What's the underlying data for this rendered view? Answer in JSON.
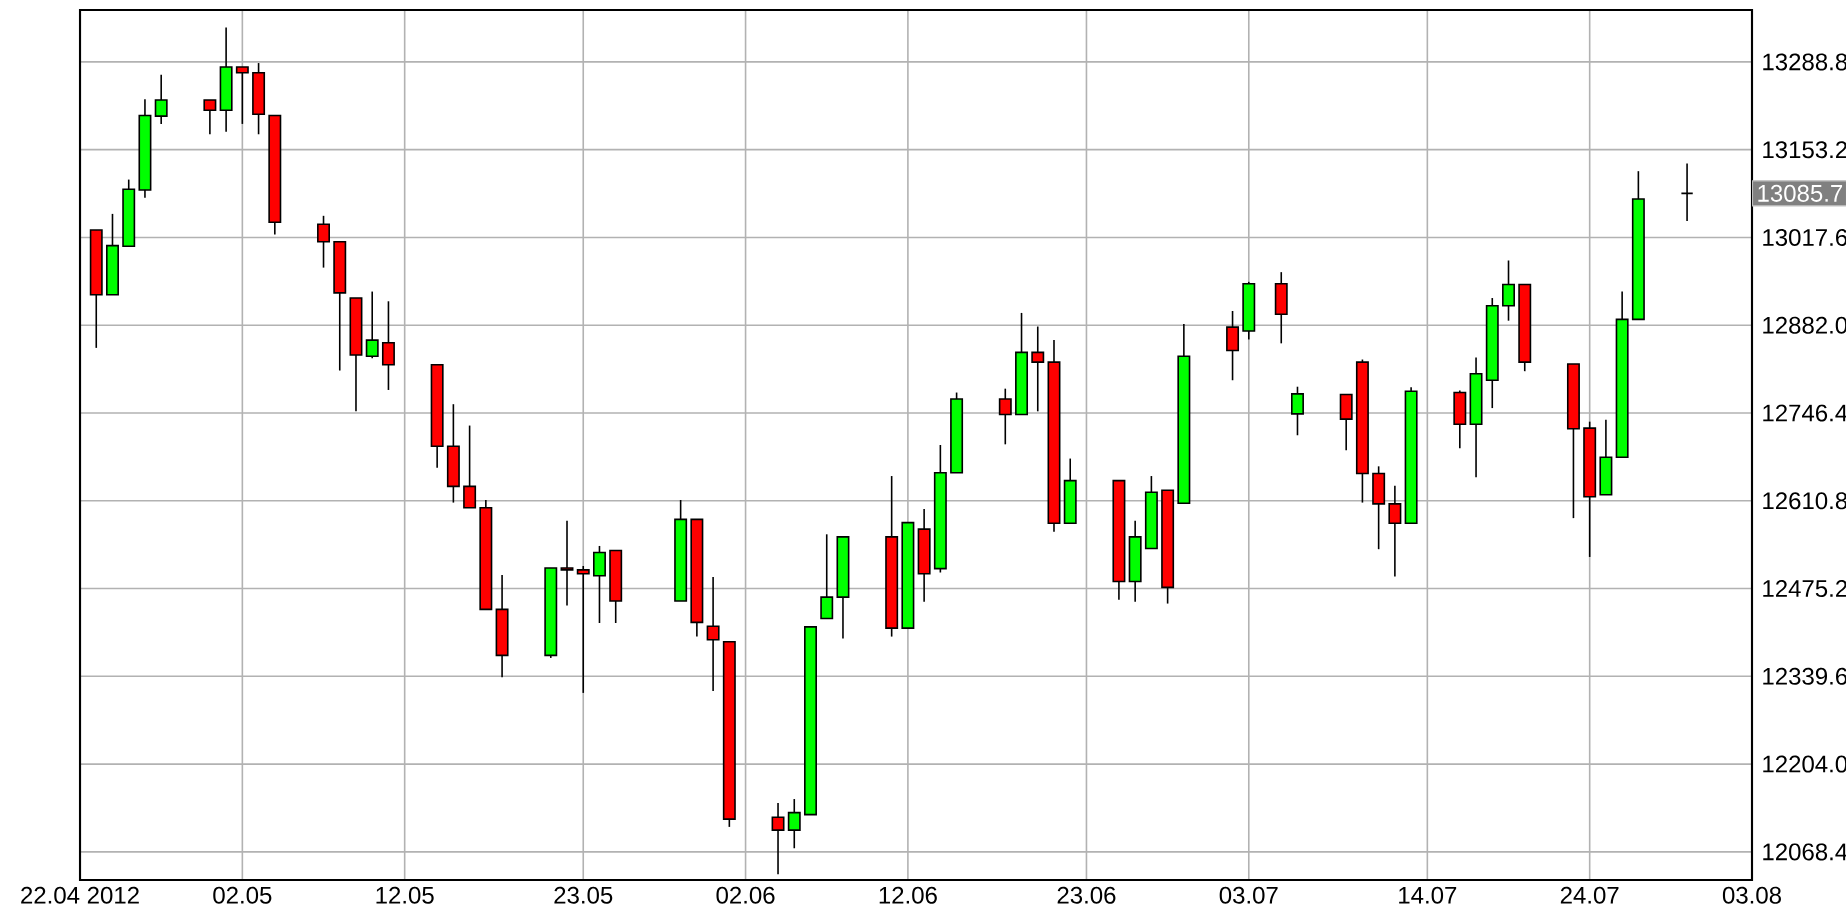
{
  "chart_data": {
    "type": "candlestick",
    "x": [
      "2012-04-23",
      "2012-04-24",
      "2012-04-25",
      "2012-04-26",
      "2012-04-27",
      "2012-04-30",
      "2012-05-01",
      "2012-05-02",
      "2012-05-03",
      "2012-05-04",
      "2012-05-07",
      "2012-05-08",
      "2012-05-09",
      "2012-05-10",
      "2012-05-11",
      "2012-05-14",
      "2012-05-15",
      "2012-05-16",
      "2012-05-17",
      "2012-05-18",
      "2012-05-21",
      "2012-05-22",
      "2012-05-23",
      "2012-05-24",
      "2012-05-25",
      "2012-05-29",
      "2012-05-30",
      "2012-05-31",
      "2012-06-01",
      "2012-06-04",
      "2012-06-05",
      "2012-06-06",
      "2012-06-07",
      "2012-06-08",
      "2012-06-11",
      "2012-06-12",
      "2012-06-13",
      "2012-06-14",
      "2012-06-15",
      "2012-06-18",
      "2012-06-19",
      "2012-06-20",
      "2012-06-21",
      "2012-06-22",
      "2012-06-25",
      "2012-06-26",
      "2012-06-27",
      "2012-06-28",
      "2012-06-29",
      "2012-07-02",
      "2012-07-03",
      "2012-07-05",
      "2012-07-06",
      "2012-07-09",
      "2012-07-10",
      "2012-07-11",
      "2012-07-12",
      "2012-07-13",
      "2012-07-16",
      "2012-07-17",
      "2012-07-18",
      "2012-07-19",
      "2012-07-20",
      "2012-07-23",
      "2012-07-24",
      "2012-07-25",
      "2012-07-26",
      "2012-07-27",
      "2012-07-30"
    ],
    "ohlc": [
      [
        13029,
        13029,
        12847,
        12929
      ],
      [
        12929,
        13054,
        12929,
        13005
      ],
      [
        13004,
        13107,
        13004,
        13092
      ],
      [
        13091,
        13231,
        13079,
        13206
      ],
      [
        13205,
        13269,
        13193,
        13230
      ],
      [
        13230,
        13230,
        13177,
        13214
      ],
      [
        13214,
        13342,
        13181,
        13281
      ],
      [
        13281,
        13281,
        13193,
        13272
      ],
      [
        13272,
        13287,
        13177,
        13208
      ],
      [
        13206,
        13206,
        13022,
        13041
      ],
      [
        13038,
        13051,
        12971,
        13011
      ],
      [
        13011,
        13011,
        12812,
        12932
      ],
      [
        12924,
        12924,
        12749,
        12836
      ],
      [
        12834,
        12934,
        12831,
        12859
      ],
      [
        12855,
        12919,
        12782,
        12821
      ],
      [
        12821,
        12821,
        12662,
        12695
      ],
      [
        12695,
        12760,
        12608,
        12633
      ],
      [
        12633,
        12727,
        12600,
        12600
      ],
      [
        12600,
        12612,
        12443,
        12443
      ],
      [
        12443,
        12496,
        12338,
        12372
      ],
      [
        12372,
        12507,
        12368,
        12507
      ],
      [
        12507,
        12580,
        12449,
        12504
      ],
      [
        12504,
        12510,
        12314,
        12498
      ],
      [
        12495,
        12541,
        12422,
        12531
      ],
      [
        12534,
        12534,
        12422,
        12456
      ],
      [
        12456,
        12612,
        12456,
        12582
      ],
      [
        12582,
        12582,
        12401,
        12423
      ],
      [
        12417,
        12493,
        12317,
        12396
      ],
      [
        12393,
        12393,
        12107,
        12119
      ],
      [
        12122,
        12144,
        12034,
        12102
      ],
      [
        12102,
        12150,
        12074,
        12129
      ],
      [
        12126,
        12416,
        12126,
        12416
      ],
      [
        12429,
        12559,
        12429,
        12462
      ],
      [
        12462,
        12555,
        12398,
        12555
      ],
      [
        12555,
        12649,
        12401,
        12414
      ],
      [
        12414,
        12577,
        12414,
        12577
      ],
      [
        12567,
        12598,
        12455,
        12498
      ],
      [
        12506,
        12697,
        12500,
        12654
      ],
      [
        12654,
        12778,
        12654,
        12768
      ],
      [
        12768,
        12784,
        12698,
        12744
      ],
      [
        12744,
        12901,
        12744,
        12840
      ],
      [
        12840,
        12880,
        12749,
        12825
      ],
      [
        12825,
        12859,
        12563,
        12576
      ],
      [
        12576,
        12676,
        12576,
        12642
      ],
      [
        12642,
        12642,
        12458,
        12486
      ],
      [
        12486,
        12580,
        12455,
        12555
      ],
      [
        12537,
        12649,
        12537,
        12624
      ],
      [
        12627,
        12627,
        12452,
        12477
      ],
      [
        12607,
        12884,
        12607,
        12834
      ],
      [
        12879,
        12904,
        12797,
        12843
      ],
      [
        12873,
        12949,
        12860,
        12946
      ],
      [
        12946,
        12964,
        12854,
        12899
      ],
      [
        12745,
        12787,
        12712,
        12776
      ],
      [
        12775,
        12775,
        12689,
        12737
      ],
      [
        12825,
        12829,
        12608,
        12653
      ],
      [
        12653,
        12664,
        12536,
        12606
      ],
      [
        12606,
        12634,
        12494,
        12576
      ],
      [
        12576,
        12786,
        12576,
        12780
      ],
      [
        12778,
        12781,
        12692,
        12729
      ],
      [
        12729,
        12832,
        12647,
        12807
      ],
      [
        12797,
        12924,
        12754,
        12912
      ],
      [
        12912,
        12982,
        12889,
        12945
      ],
      [
        12945,
        12945,
        12811,
        12825
      ],
      [
        12822,
        12822,
        12584,
        12722
      ],
      [
        12723,
        12733,
        12524,
        12617
      ],
      [
        12620,
        12736,
        12620,
        12678
      ],
      [
        12678,
        12934,
        12678,
        12891
      ],
      [
        12891,
        13120,
        12891,
        13077
      ],
      [
        13085.7,
        13132,
        13043,
        13085.7
      ]
    ],
    "colors": [
      "#ff0000",
      "#00ff00",
      "#00ff00",
      "#00ff00",
      "#00ff00",
      "#ff0000",
      "#00ff00",
      "#ff0000",
      "#ff0000",
      "#ff0000",
      "#ff0000",
      "#ff0000",
      "#ff0000",
      "#00ff00",
      "#ff0000",
      "#ff0000",
      "#ff0000",
      "#ff0000",
      "#ff0000",
      "#ff0000",
      "#00ff00",
      "#ff0000",
      "#ff0000",
      "#00ff00",
      "#ff0000",
      "#00ff00",
      "#ff0000",
      "#ff0000",
      "#ff0000",
      "#ff0000",
      "#00ff00",
      "#00ff00",
      "#00ff00",
      "#00ff00",
      "#ff0000",
      "#00ff00",
      "#ff0000",
      "#00ff00",
      "#00ff00",
      "#ff0000",
      "#00ff00",
      "#ff0000",
      "#ff0000",
      "#00ff00",
      "#ff0000",
      "#00ff00",
      "#00ff00",
      "#ff0000",
      "#00ff00",
      "#ff0000",
      "#00ff00",
      "#ff0000",
      "#00ff00",
      "#ff0000",
      "#ff0000",
      "#ff0000",
      "#ff0000",
      "#00ff00",
      "#ff0000",
      "#00ff00",
      "#00ff00",
      "#00ff00",
      "#ff0000",
      "#ff0000",
      "#ff0000",
      "#00ff00",
      "#00ff00",
      "#00ff00",
      "#000000"
    ],
    "xlim": [
      "2012-04-22",
      "2012-08-03"
    ],
    "xticks": [
      {
        "value": "2012-04-22",
        "label": "22.04 2012"
      },
      {
        "value": "2012-05-02",
        "label": "02.05"
      },
      {
        "value": "2012-05-12",
        "label": "12.05"
      },
      {
        "value": "2012-05-23",
        "label": "23.05"
      },
      {
        "value": "2012-06-02",
        "label": "02.06"
      },
      {
        "value": "2012-06-12",
        "label": "12.06"
      },
      {
        "value": "2012-06-23",
        "label": "23.06"
      },
      {
        "value": "2012-07-03",
        "label": "03.07"
      },
      {
        "value": "2012-07-14",
        "label": "14.07"
      },
      {
        "value": "2012-07-24",
        "label": "24.07"
      },
      {
        "value": "2012-08-03",
        "label": "03.08"
      }
    ],
    "ylim": [
      12025,
      13369
    ],
    "yticks": [
      12068.4,
      {
        "value": 12204.0,
        "label": "12204.0"
      },
      12339.6,
      12475.2,
      12610.8,
      12746.4,
      {
        "value": 12882.0,
        "label": "12882.0"
      },
      13017.6,
      13153.2,
      13288.8
    ],
    "annotations": [
      "13085.7"
    ],
    "grid": true
  }
}
